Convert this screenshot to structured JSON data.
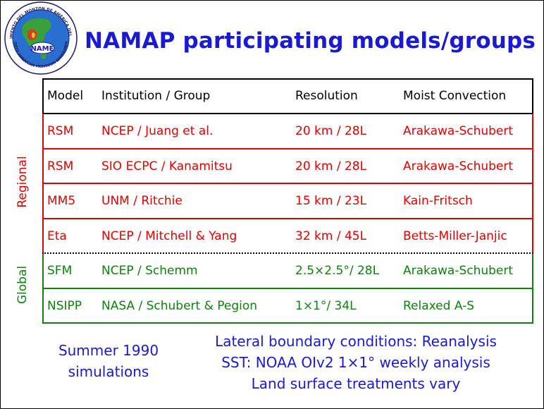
{
  "title": "NAMAP participating models/groups",
  "logo": {
    "emblem_text": "NAME",
    "ring_top_text": "EXPERIMENTO DEL MONZÓN DE AMÉRICA DEL NORTE",
    "ring_bottom_text": "NORTH AMERICAN MONSOON EXPERIMENT",
    "icon": "globe-north-america-icon"
  },
  "table": {
    "headers": {
      "model": "Model",
      "institution": "Institution / Group",
      "resolution": "Resolution",
      "convection": "Moist Convection"
    },
    "regional_rows": [
      {
        "model": "RSM",
        "institution": "NCEP / Juang et al.",
        "resolution": "20 km / 28L",
        "convection": "Arakawa-Schubert"
      },
      {
        "model": "RSM",
        "institution": "SIO ECPC / Kanamitsu",
        "resolution": "20 km / 28L",
        "convection": "Arakawa-Schubert"
      },
      {
        "model": "MM5",
        "institution": "UNM / Ritchie",
        "resolution": "15 km / 23L",
        "convection": "Kain-Fritsch"
      },
      {
        "model": "Eta",
        "institution": "NCEP / Mitchell & Yang",
        "resolution": "32 km / 45L",
        "convection": "Betts-Miller-Janjic"
      }
    ],
    "global_rows": [
      {
        "model": "SFM",
        "institution": "NCEP / Schemm",
        "resolution": "2.5×2.5°/ 28L",
        "convection": "Arakawa-Schubert"
      },
      {
        "model": "NSIPP",
        "institution": "NASA / Schubert & Pegion",
        "resolution": "1×1°/ 34L",
        "convection": "Relaxed A-S"
      }
    ],
    "group_labels": {
      "regional": "Regional",
      "global": "Global"
    }
  },
  "notes": {
    "summer_line1": "Summer 1990",
    "summer_line2": "simulations",
    "lines": [
      "Lateral boundary conditions: Reanalysis",
      "SST: NOAA OIv2 1×1° weekly analysis",
      "Land surface treatments vary"
    ]
  },
  "colors": {
    "title": "#1a1ad0",
    "regional": "#e00000",
    "global": "#108010",
    "rule": "#000000"
  }
}
